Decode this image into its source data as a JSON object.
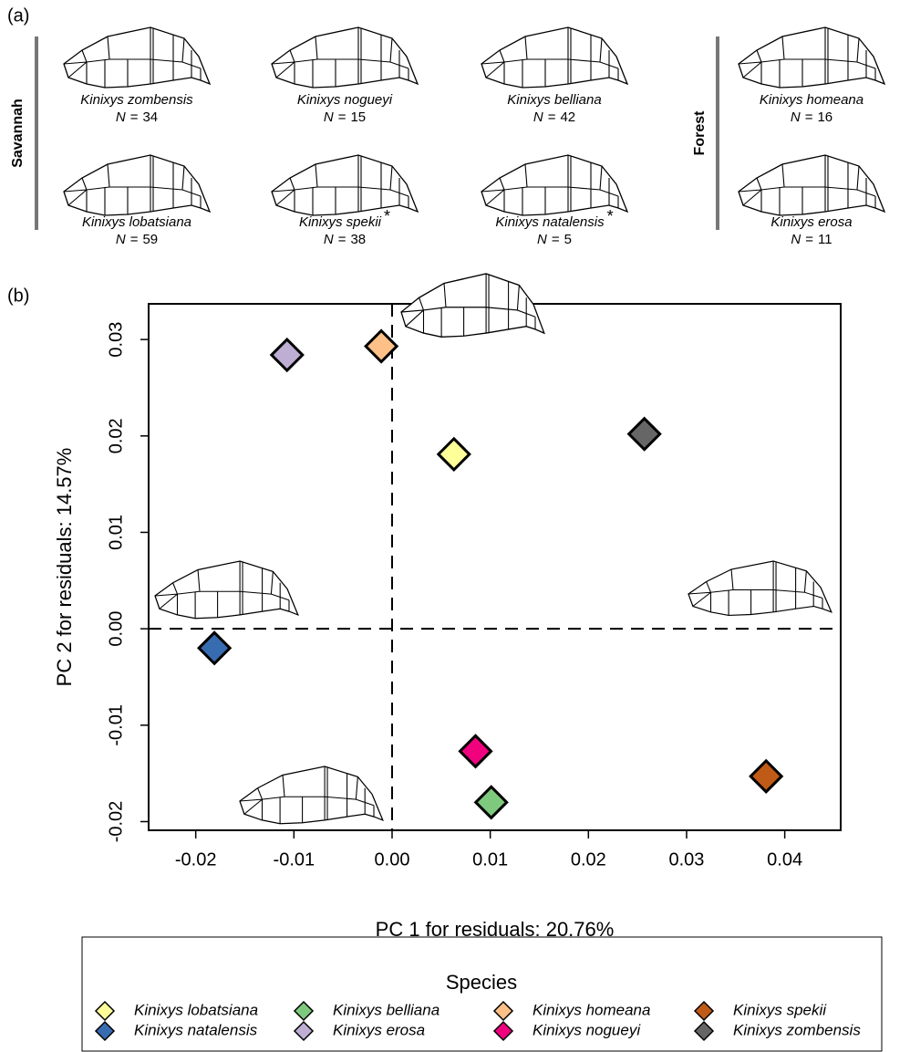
{
  "panel_a": {
    "label": "(a)",
    "groups": [
      "Savannah",
      "Forest"
    ],
    "sample_symbol": "N",
    "equals": "=",
    "species": [
      {
        "name": "Kinixys zombensis",
        "n": 34
      },
      {
        "name": "Kinixys nogueyi",
        "n": 15
      },
      {
        "name": "Kinixys belliana",
        "n": 42
      },
      {
        "name": "Kinixys homeana",
        "n": 16
      },
      {
        "name": "Kinixys lobatsiana",
        "n": 59
      },
      {
        "name": "Kinixys spekii",
        "n": 38,
        "marker": "*"
      },
      {
        "name": "Kinixys natalensis",
        "n": 5,
        "marker": "*"
      },
      {
        "name": "Kinixys erosa",
        "n": 11
      }
    ]
  },
  "panel_b_label": "(b)",
  "chart_data": {
    "type": "scatter",
    "x_label": "PC 1 for residuals: 20.76%",
    "y_label": "PC 2 for residuals: 14.57%",
    "xlim": [
      -0.0248,
      0.0457
    ],
    "ylim": [
      -0.0209,
      0.0337
    ],
    "xticks": [
      -0.02,
      -0.01,
      {
        "value": 0,
        "label": "0.00"
      },
      0.01,
      0.02,
      0.03,
      0.04
    ],
    "yticks": [
      -0.02,
      -0.01,
      {
        "value": 0,
        "label": "0.00"
      },
      0.01,
      0.02,
      0.03
    ],
    "legend_title": "Species",
    "legend_position": "bottom",
    "series": [
      {
        "name": "Kinixys lobatsiana",
        "color": "#ffff99",
        "x": [
          0.0063
        ],
        "values": [
          0.0181
        ]
      },
      {
        "name": "Kinixys natalensis",
        "color": "#386cb0",
        "x": [
          -0.0181
        ],
        "values": [
          -0.002
        ]
      },
      {
        "name": "Kinixys belliana",
        "color": "#7fc97f",
        "x": [
          0.0101
        ],
        "values": [
          -0.018
        ]
      },
      {
        "name": "Kinixys erosa",
        "color": "#beaed4",
        "x": [
          -0.0107
        ],
        "values": [
          0.0284
        ]
      },
      {
        "name": "Kinixys homeana",
        "color": "#fdc086",
        "x": [
          -0.0011
        ],
        "values": [
          0.0293
        ]
      },
      {
        "name": "Kinixys nogueyi",
        "color": "#f0027f",
        "x": [
          0.0085
        ],
        "values": [
          -0.0127
        ]
      },
      {
        "name": "Kinixys spekii",
        "color": "#bf5b17",
        "x": [
          0.0381
        ],
        "values": [
          -0.0153
        ]
      },
      {
        "name": "Kinixys zombensis",
        "color": "#666666",
        "x": [
          0.0257
        ],
        "values": [
          0.0202
        ]
      }
    ]
  }
}
